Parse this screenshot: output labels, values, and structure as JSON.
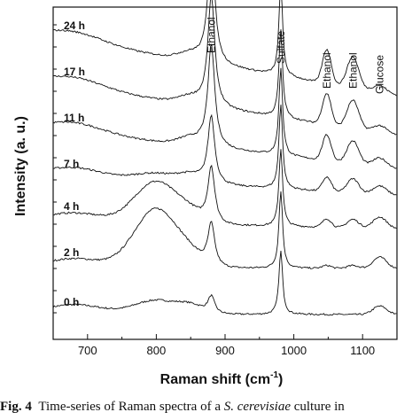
{
  "chart_data": {
    "type": "line",
    "xlabel": "Raman shift (cm",
    "xlabel_sup": "-1",
    "xlabel_close": ")",
    "ylabel": "Intensity (a. u.)",
    "xlim": [
      650,
      1150
    ],
    "xticks": [
      700,
      800,
      900,
      1000,
      1100
    ],
    "yticks_shown": false,
    "peaks": [
      {
        "label": "Ethanol",
        "x": 880
      },
      {
        "label": "Sulfate",
        "x": 981
      },
      {
        "label": "Ethanol",
        "x": 1048
      },
      {
        "label": "Ethanol",
        "x": 1086
      },
      {
        "label": "Glucose",
        "x": 1125
      }
    ],
    "series": [
      {
        "name": "0 h",
        "offset": 0,
        "base_slope": 0.0,
        "hump": 0.1,
        "p880": 0.12,
        "p981": 0.45,
        "p1048": 0.0,
        "p1086": 0.0,
        "p1125": 0.06
      },
      {
        "name": "2 h",
        "offset": 1,
        "base_slope": 0.0,
        "hump": 0.42,
        "p880": 0.3,
        "p981": 0.55,
        "p1048": 0.02,
        "p1086": 0.02,
        "p1125": 0.08
      },
      {
        "name": "4 h",
        "offset": 2,
        "base_slope": -0.05,
        "hump": 0.3,
        "p880": 0.4,
        "p981": 0.55,
        "p1048": 0.06,
        "p1086": 0.06,
        "p1125": 0.08
      },
      {
        "name": "7 h",
        "offset": 3,
        "base_slope": -0.15,
        "hump": 0.06,
        "p880": 0.48,
        "p981": 0.6,
        "p1048": 0.1,
        "p1086": 0.1,
        "p1125": 0.06
      },
      {
        "name": "11 h",
        "offset": 4,
        "base_slope": -0.3,
        "hump": 0.0,
        "p880": 0.72,
        "p981": 0.62,
        "p1048": 0.18,
        "p1086": 0.16,
        "p1125": 0.06
      },
      {
        "name": "17 h",
        "offset": 5,
        "base_slope": -0.4,
        "hump": 0.0,
        "p880": 0.78,
        "p981": 0.62,
        "p1048": 0.22,
        "p1086": 0.2,
        "p1125": 0.05
      },
      {
        "name": "24 h",
        "offset": 6,
        "base_slope": -0.45,
        "hump": 0.0,
        "p880": 0.85,
        "p981": 0.65,
        "p1048": 0.24,
        "p1086": 0.22,
        "p1125": 0.05
      }
    ]
  },
  "caption": {
    "fig": "Fig. 4",
    "text_before": "Time-series of Raman spectra of a ",
    "species": "S. cerevisiae",
    "text_after": " culture in"
  }
}
